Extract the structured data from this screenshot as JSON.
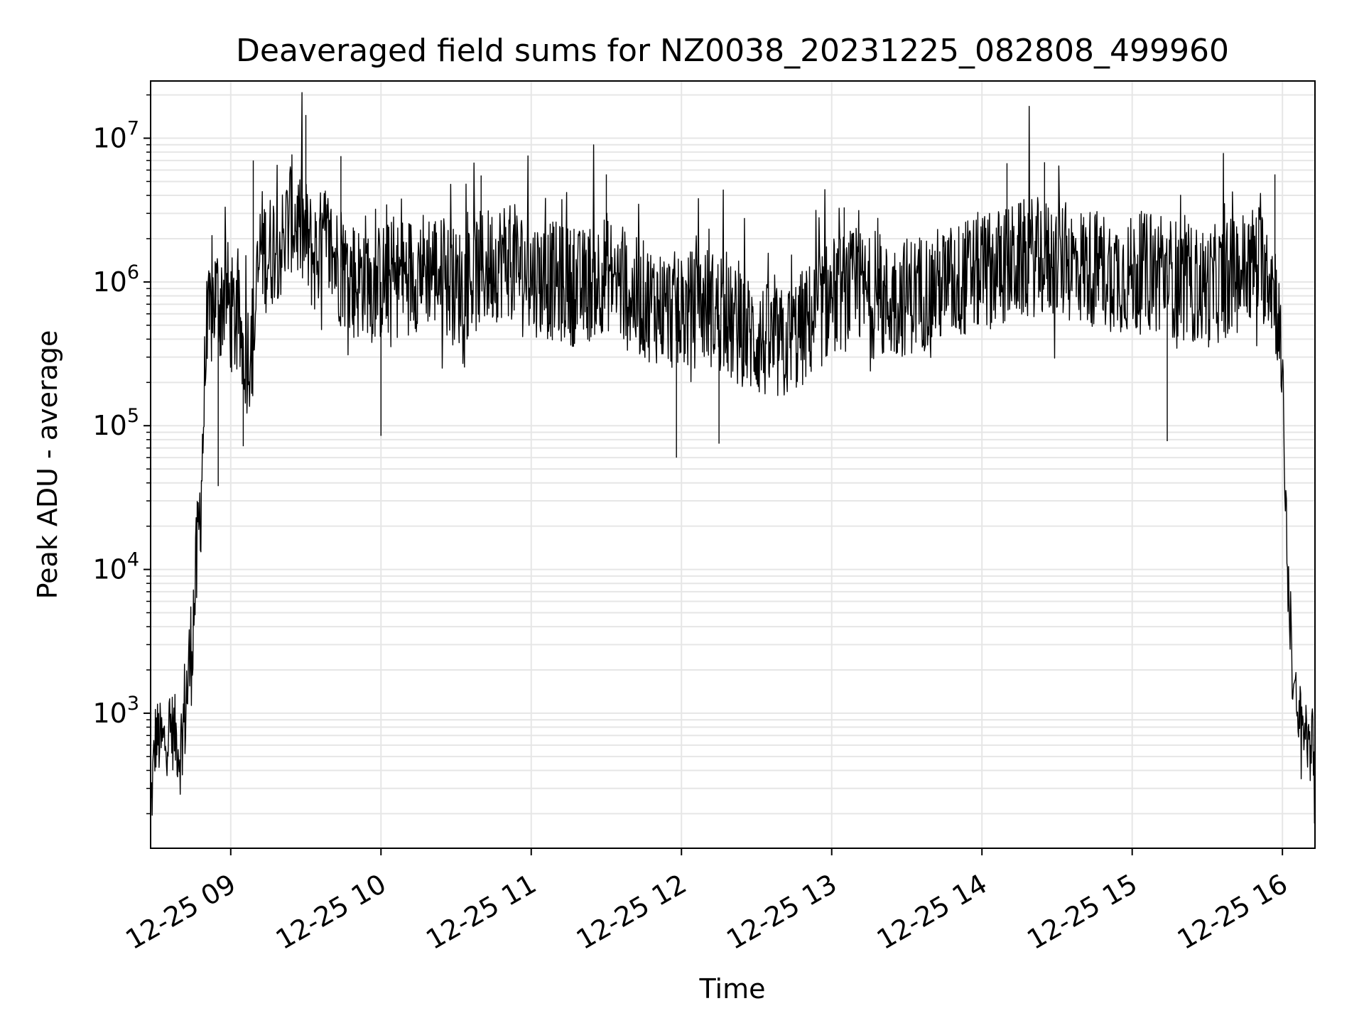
{
  "chart_data": {
    "type": "line",
    "title": "Deaveraged field sums for NZ0038_20231225_082808_499960",
    "xlabel": "Time",
    "ylabel": "Peak ADU - average",
    "xscale": "time",
    "yscale": "log",
    "xlim": [
      "2023-12-25 08:28",
      "2023-12-25 16:13"
    ],
    "ylim": [
      115,
      25000000
    ],
    "x_ticks": [
      "12-25 09",
      "12-25 10",
      "12-25 11",
      "12-25 12",
      "12-25 13",
      "12-25 14",
      "12-25 15",
      "12-25 16"
    ],
    "y_ticks": [
      {
        "base": "10",
        "exp": "3",
        "value": 1000
      },
      {
        "base": "10",
        "exp": "4",
        "value": 10000
      },
      {
        "base": "10",
        "exp": "5",
        "value": 100000
      },
      {
        "base": "10",
        "exp": "6",
        "value": 1000000
      },
      {
        "base": "10",
        "exp": "7",
        "value": 10000000
      }
    ],
    "grid": true,
    "line_color": "#000000",
    "grid_color": "#e6e6e6",
    "series": [
      {
        "x": [
          "08:28",
          "08:30",
          "08:33",
          "08:36",
          "08:38",
          "08:40",
          "08:42",
          "08:44",
          "08:46",
          "08:48",
          "08:50",
          "08:52",
          "08:54",
          "08:56",
          "08:58",
          "09:00",
          "09:03",
          "09:06",
          "09:09",
          "09:12",
          "09:15",
          "09:18",
          "09:21",
          "09:24",
          "09:27",
          "09:30",
          "09:33",
          "09:36",
          "09:39",
          "09:42",
          "09:45",
          "09:48",
          "09:51",
          "09:54",
          "09:57",
          "10:00",
          "10:10",
          "10:20",
          "10:30",
          "10:40",
          "10:50",
          "11:00",
          "11:10",
          "11:20",
          "11:30",
          "11:40",
          "11:50",
          "12:00",
          "12:10",
          "12:20",
          "12:30",
          "12:40",
          "12:50",
          "13:00",
          "13:10",
          "13:20",
          "13:30",
          "13:40",
          "13:50",
          "14:00",
          "14:10",
          "14:20",
          "14:30",
          "14:40",
          "14:50",
          "15:00",
          "15:10",
          "15:20",
          "15:30",
          "15:40",
          "15:50",
          "15:55",
          "15:58",
          "16:00",
          "16:01",
          "16:02",
          "16:03",
          "16:04",
          "16:05",
          "16:06",
          "16:08",
          "16:10",
          "16:12",
          "16:13"
        ],
        "y": [
          200,
          700,
          600,
          800,
          700,
          500,
          1200,
          2500,
          8000,
          30000,
          300000,
          600000,
          800000,
          700000,
          900000,
          600000,
          500000,
          300000,
          400000,
          1800000,
          1500000,
          2000000,
          1800000,
          3000000,
          2500000,
          2000000,
          1500000,
          1700000,
          1800000,
          1400000,
          1200000,
          1100000,
          1000000,
          1200000,
          900000,
          1000000,
          1100000,
          1300000,
          900000,
          1200000,
          1500000,
          1100000,
          1000000,
          900000,
          1200000,
          800000,
          700000,
          600000,
          700000,
          500000,
          400000,
          350000,
          500000,
          800000,
          900000,
          700000,
          800000,
          900000,
          1000000,
          1200000,
          1300000,
          1500000,
          1400000,
          1300000,
          1200000,
          1100000,
          1200000,
          1000000,
          900000,
          1100000,
          1400000,
          1200000,
          700000,
          200000,
          50000,
          10000,
          5000,
          2000,
          1200,
          900,
          800,
          700,
          600,
          250
        ]
      }
    ],
    "spikes": [
      {
        "x": "09:09",
        "y": 7000000
      },
      {
        "x": "09:30",
        "y": 14500000
      },
      {
        "x": "09:44",
        "y": 7500000
      },
      {
        "x": "10:40",
        "y": 5500000
      },
      {
        "x": "11:30",
        "y": 5600000
      },
      {
        "x": "13:05",
        "y": 3300000
      },
      {
        "x": "14:10",
        "y": 6700000
      },
      {
        "x": "14:25",
        "y": 6800000
      },
      {
        "x": "15:57",
        "y": 5600000
      },
      {
        "x": "11:58",
        "y": 60000
      },
      {
        "x": "12:15",
        "y": 75000
      },
      {
        "x": "10:00",
        "y": 85000
      },
      {
        "x": "15:14",
        "y": 78000
      },
      {
        "x": "08:55",
        "y": 38000
      },
      {
        "x": "09:05",
        "y": 72000
      }
    ]
  }
}
